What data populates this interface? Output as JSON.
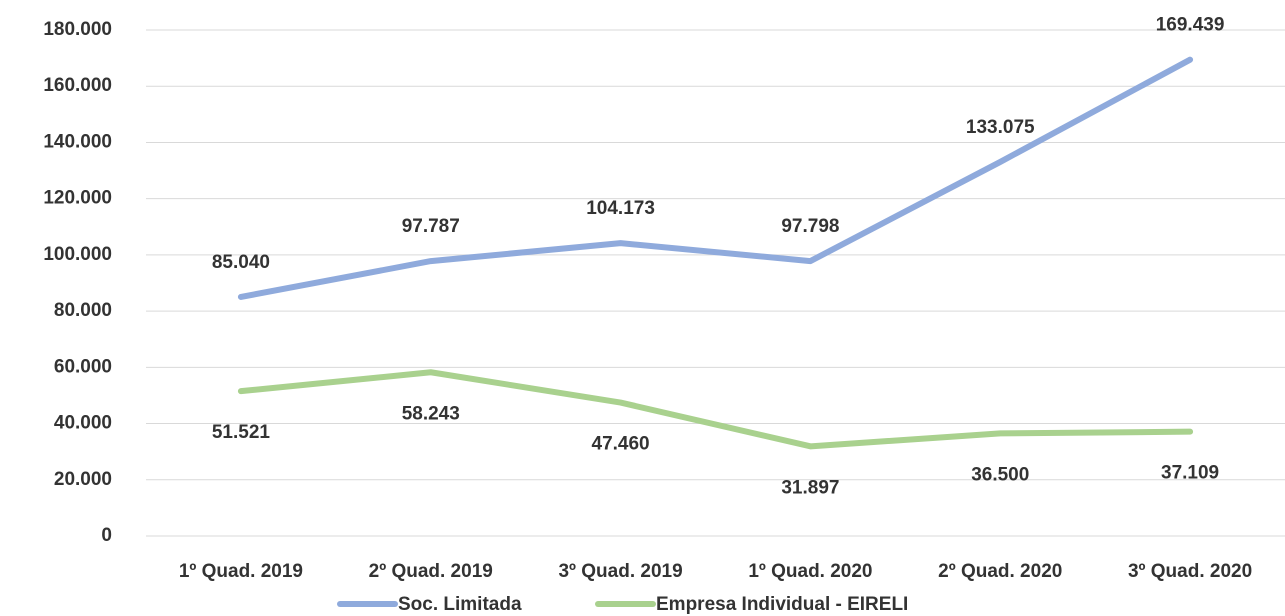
{
  "chart_data": {
    "type": "line",
    "categories": [
      "1º Quad. 2019",
      "2º Quad. 2019",
      "3º Quad. 2019",
      "1º Quad. 2020",
      "2º Quad. 2020",
      "3º Quad. 2020"
    ],
    "series": [
      {
        "name": "Soc. Limitada",
        "color": "#8faadc",
        "values": [
          85040,
          97787,
          104173,
          97798,
          133075,
          169439
        ],
        "value_labels": [
          "85.040",
          "97.787",
          "104.173",
          "97.798",
          "133.075",
          "169.439"
        ]
      },
      {
        "name": "Empresa Individual - EIRELI",
        "color": "#a9d18e",
        "values": [
          51521,
          58243,
          47460,
          31897,
          36500,
          37109
        ],
        "value_labels": [
          "51.521",
          "58.243",
          "47.460",
          "31.897",
          "36.500",
          "37.109"
        ]
      }
    ],
    "ylim": [
      0,
      180000
    ],
    "yticks": [
      0,
      {
        "value": 20000,
        "label": "20.000"
      },
      {
        "value": 40000,
        "label": "40.000"
      },
      {
        "value": 60000,
        "label": "60.000"
      },
      {
        "value": 80000,
        "label": "80.000"
      },
      {
        "value": 100000,
        "label": "100.000"
      },
      {
        "value": 120000,
        "label": "120.000"
      },
      {
        "value": 140000,
        "label": "140.000"
      },
      {
        "value": 160000,
        "label": "160.000"
      },
      {
        "value": 180000,
        "label": "180.000"
      }
    ],
    "grid": true,
    "legend": "bottom"
  }
}
